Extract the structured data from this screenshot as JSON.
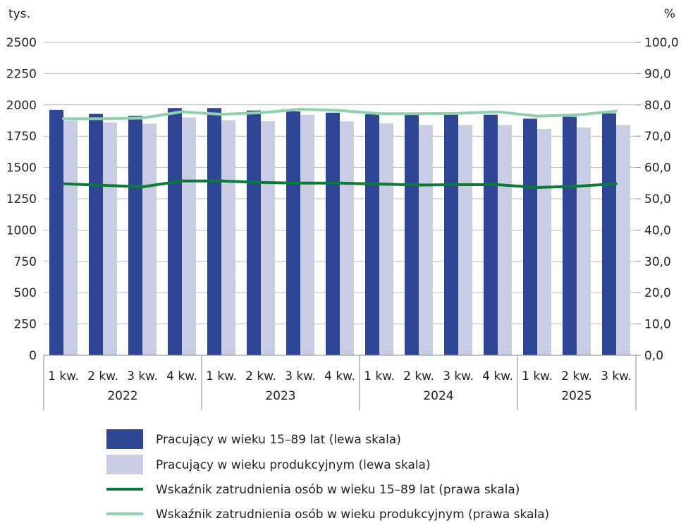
{
  "chart_data": {
    "type": "bar",
    "left_axis_unit": "tys.",
    "right_axis_unit": "%",
    "left_ylim": [
      0,
      2500
    ],
    "right_ylim": [
      0,
      100
    ],
    "left_ticks": [
      "0",
      "250",
      "500",
      "750",
      "1000",
      "1250",
      "1500",
      "1750",
      "2000",
      "2250",
      "2500"
    ],
    "right_ticks": [
      "0,0",
      "10,0",
      "20,0",
      "30,0",
      "40,0",
      "50,0",
      "60,0",
      "70,0",
      "80,0",
      "90,0",
      "100,0"
    ],
    "categories": [
      "1 kw.",
      "2 kw.",
      "3 kw.",
      "4 kw.",
      "1 kw.",
      "2 kw.",
      "3 kw.",
      "4 kw.",
      "1 kw.",
      "2 kw.",
      "3 kw.",
      "4 kw.",
      "1 kw.",
      "2 kw.",
      "3 kw."
    ],
    "groups": [
      {
        "label": "2022",
        "count": 4
      },
      {
        "label": "2023",
        "count": 4
      },
      {
        "label": "2024",
        "count": 4
      },
      {
        "label": "2025",
        "count": 3
      }
    ],
    "series": [
      {
        "name": "Pracujący w wieku 15–89 lat (lewa skala)",
        "type": "bar",
        "axis": "left",
        "color": "#2e4593",
        "values": [
          1960,
          1928,
          1912,
          1975,
          1975,
          1955,
          1948,
          1938,
          1925,
          1922,
          1922,
          1922,
          1890,
          1905,
          1932
        ]
      },
      {
        "name": "Pracujący w wieku produkcyjnym (lewa skala)",
        "type": "bar",
        "axis": "left",
        "color": "#c8cde3",
        "values": [
          1875,
          1860,
          1850,
          1900,
          1878,
          1870,
          1920,
          1868,
          1852,
          1840,
          1840,
          1840,
          1808,
          1820,
          1840
        ]
      },
      {
        "name": "Wskaźnik zatrudnienia osób w wieku 15–89 lat (prawa skala)",
        "type": "line",
        "axis": "right",
        "color": "#0d7a3a",
        "values": [
          54.8,
          54.3,
          53.8,
          55.7,
          55.7,
          55.2,
          55.0,
          55.0,
          54.7,
          54.4,
          54.5,
          54.5,
          53.6,
          54.0,
          54.8
        ]
      },
      {
        "name": "Wskaźnik zatrudnienia osób w wieku produkcyjnym (prawa skala)",
        "type": "line",
        "axis": "right",
        "color": "#8fd0ad",
        "values": [
          75.6,
          75.6,
          75.8,
          77.8,
          77.0,
          77.5,
          78.6,
          78.2,
          77.2,
          77.2,
          77.3,
          77.8,
          76.4,
          76.8,
          78.0
        ]
      }
    ],
    "grid": true,
    "legend_position": "bottom"
  }
}
